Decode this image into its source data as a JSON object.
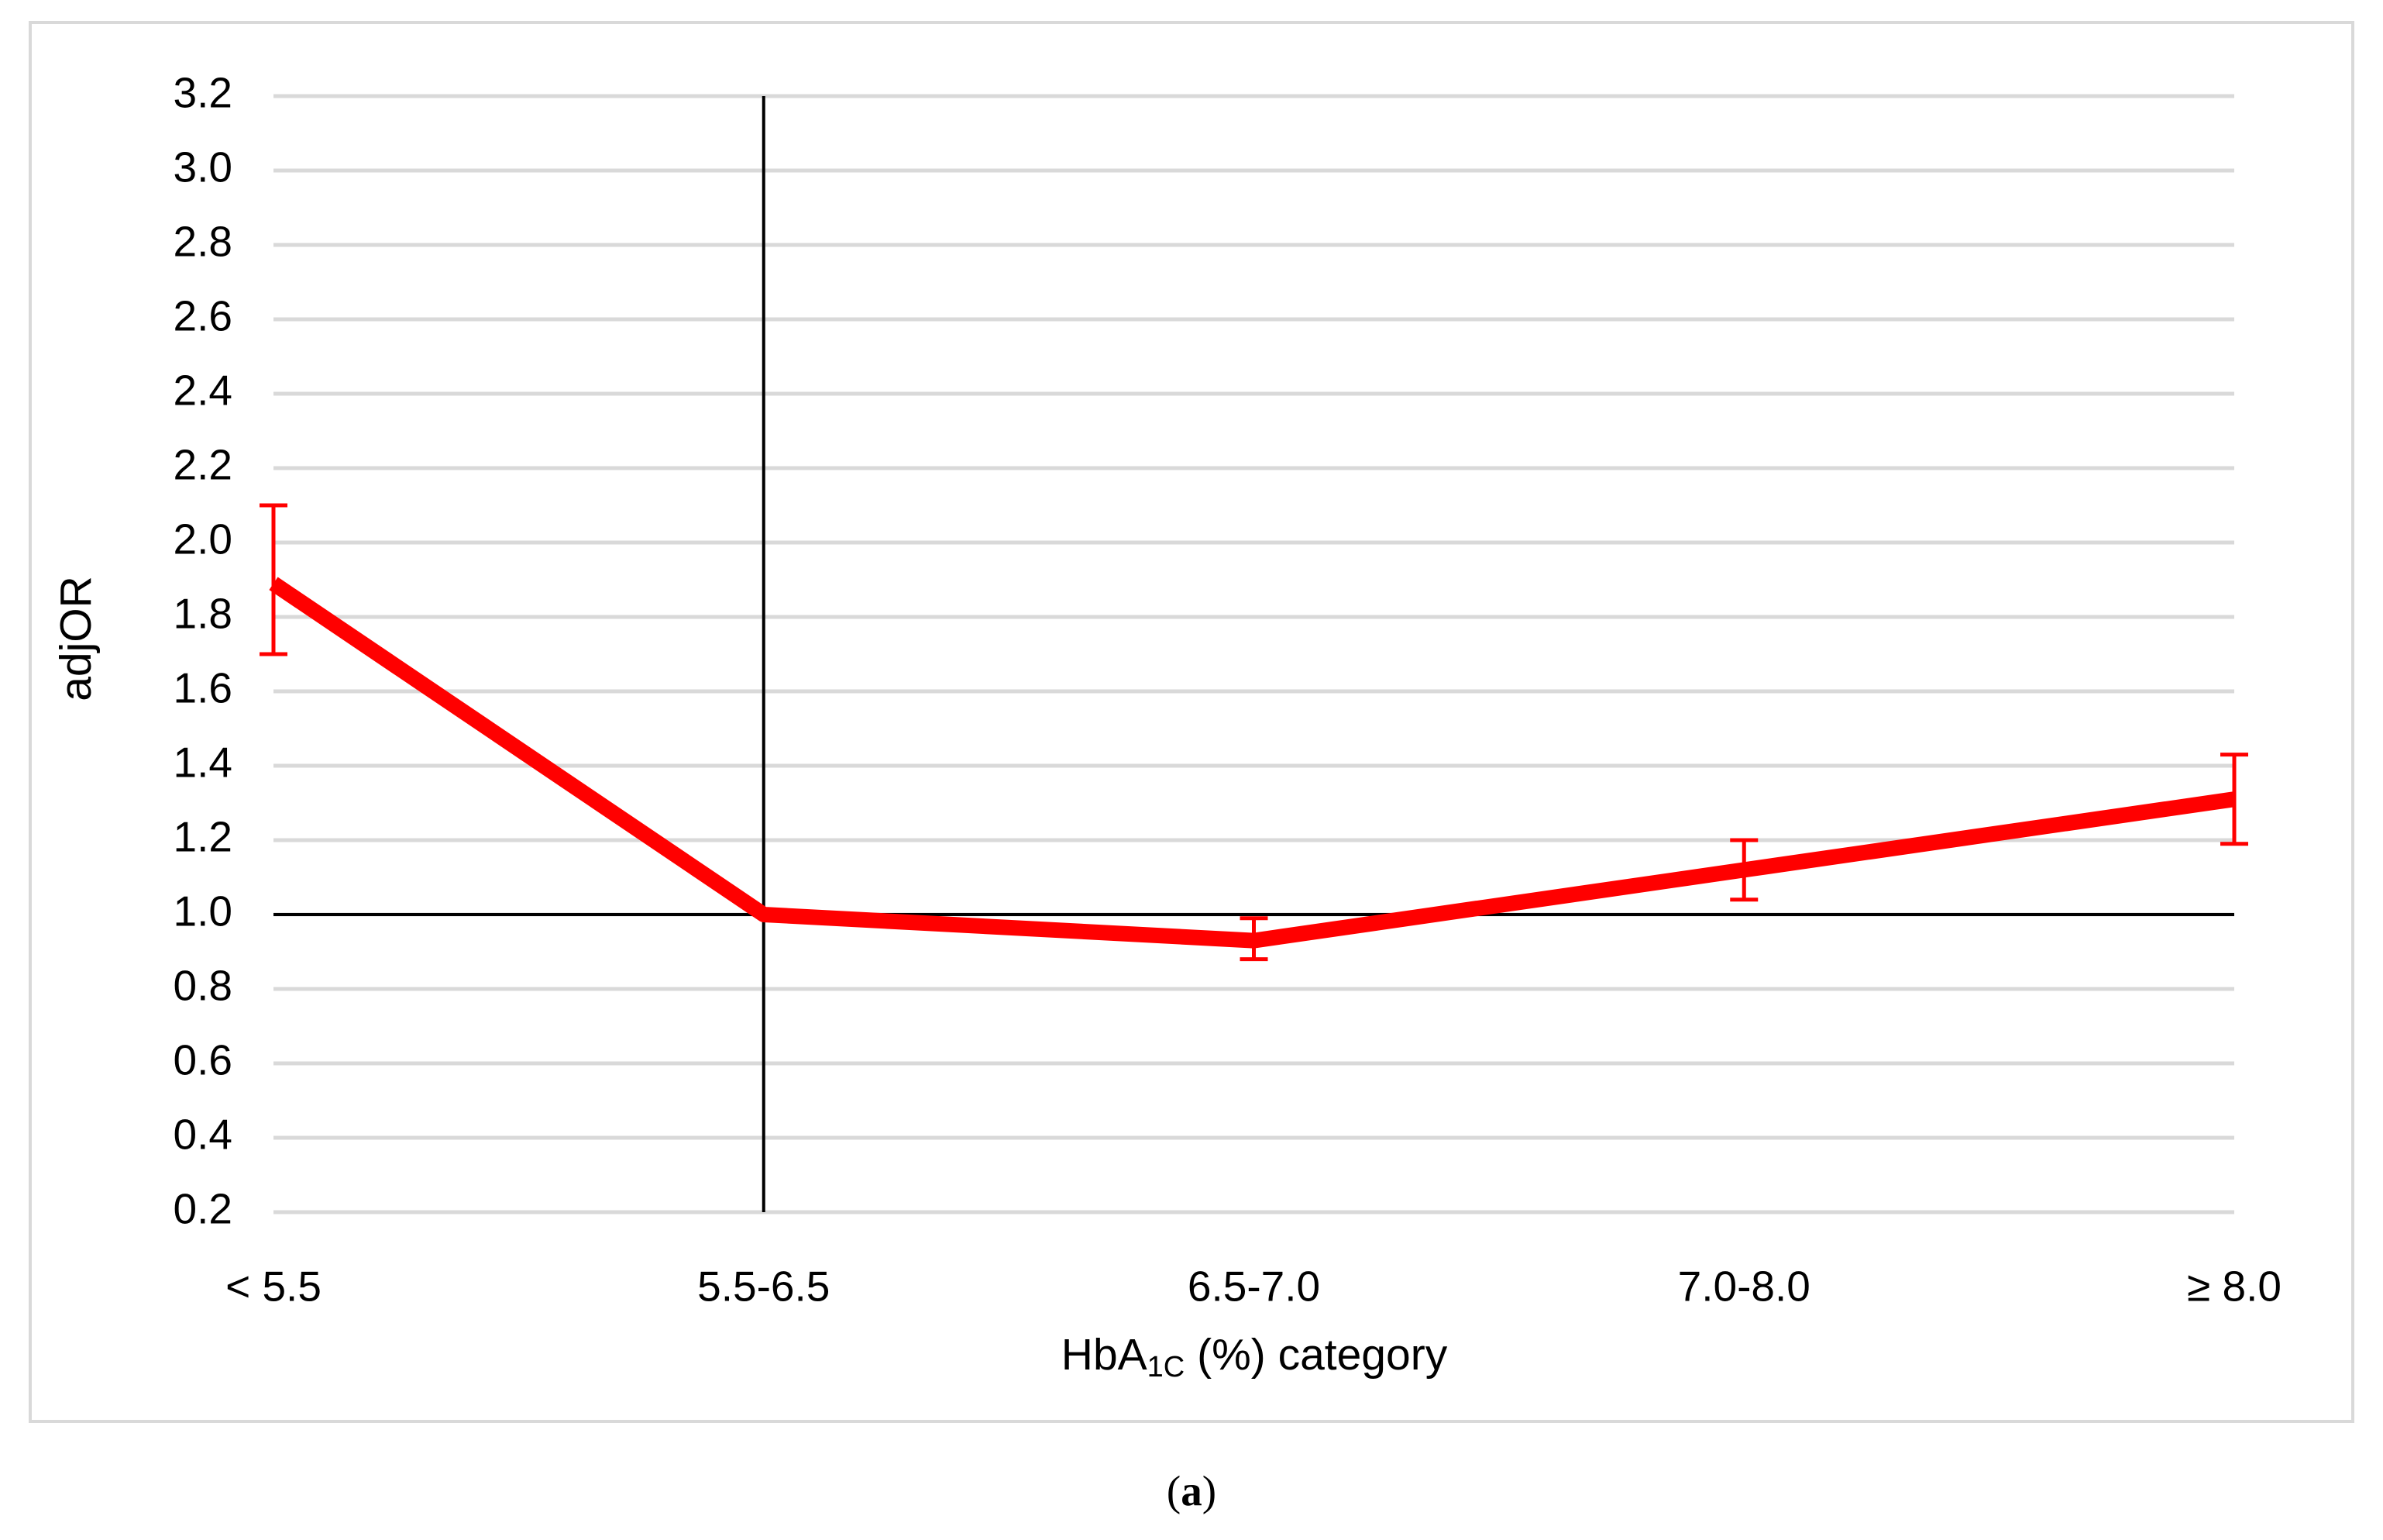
{
  "chart_data": {
    "type": "line",
    "xlabel_parts": [
      "HbA",
      "1C",
      " (%) category"
    ],
    "ylabel": "adjOR",
    "caption_parts": [
      "(",
      "a",
      ")"
    ],
    "categories": [
      "< 5.5",
      "5.5-6.5",
      "6.5-7.0",
      "7.0-8.0",
      "≥ 8.0"
    ],
    "series": [
      {
        "name": "adjOR",
        "color": "#ff0000",
        "values": [
          1.89,
          1.0,
          0.93,
          1.12,
          1.31
        ],
        "ci_low": [
          1.7,
          null,
          0.88,
          1.04,
          1.19
        ],
        "ci_high": [
          2.1,
          null,
          0.99,
          1.2,
          1.43
        ]
      }
    ],
    "ylim": [
      0.2,
      3.2
    ],
    "yticks": [
      0.2,
      0.4,
      0.6,
      0.8,
      {
        "value": 1,
        "label": "1.0"
      },
      1.2,
      1.4,
      1.6,
      1.8,
      {
        "value": 2,
        "label": "2.0"
      },
      2.2,
      2.4,
      2.6,
      2.8,
      {
        "value": 3,
        "label": "3.0"
      },
      3.2
    ],
    "grid": true,
    "hline": 1.0,
    "vline_category": "5.5-6.5"
  }
}
